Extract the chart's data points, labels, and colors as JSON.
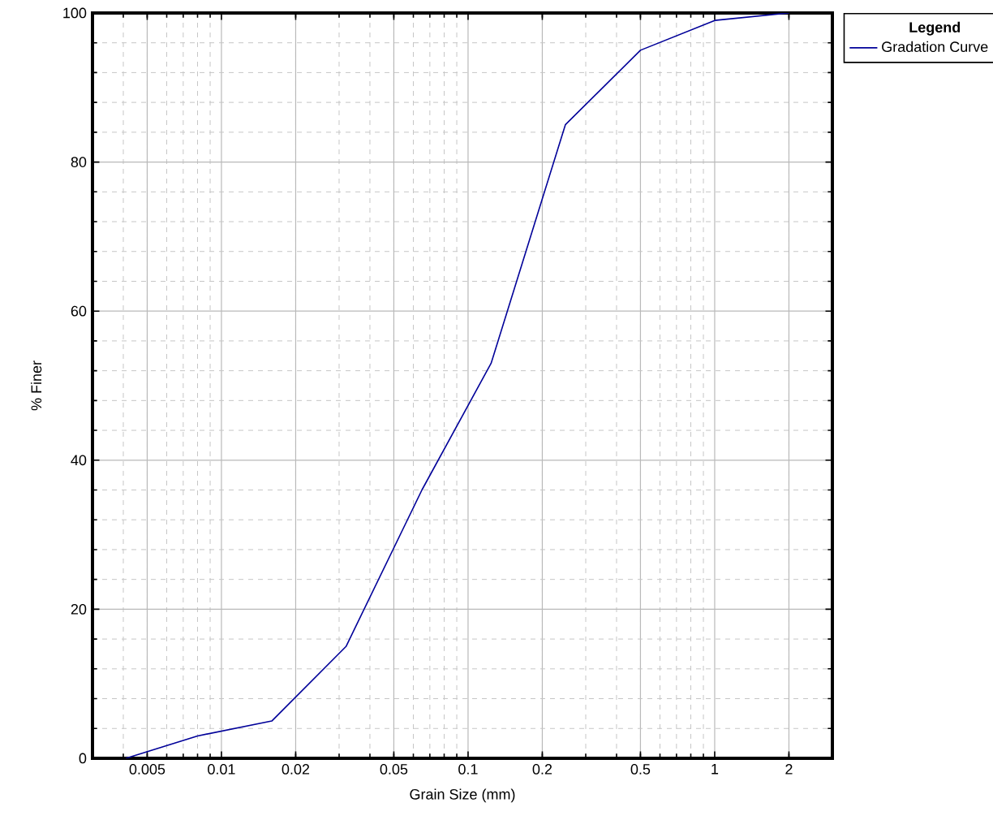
{
  "chart_data": {
    "type": "line",
    "xlabel": "Grain Size (mm)",
    "ylabel": "% Finer",
    "legend_title": "Legend",
    "x": [
      0.0041,
      0.008,
      0.016,
      0.032,
      0.065,
      0.124,
      0.248,
      0.5,
      1.0,
      2.0
    ],
    "series": [
      {
        "name": "Gradation Curve",
        "color": "#000099",
        "values": [
          0,
          3,
          5,
          15,
          36,
          53,
          85,
          95,
          99,
          100
        ]
      }
    ],
    "log": "x",
    "xlim": [
      0.003,
      3
    ],
    "ylim": [
      0,
      100
    ],
    "xticks": [
      0.005,
      0.01,
      0.02,
      0.05,
      0.1,
      0.2,
      0.5,
      1,
      2
    ],
    "yticks": [
      0,
      20,
      40,
      60,
      80,
      100
    ],
    "grid": true,
    "legend": "top right",
    "marker": "none",
    "line_style": "solid"
  }
}
